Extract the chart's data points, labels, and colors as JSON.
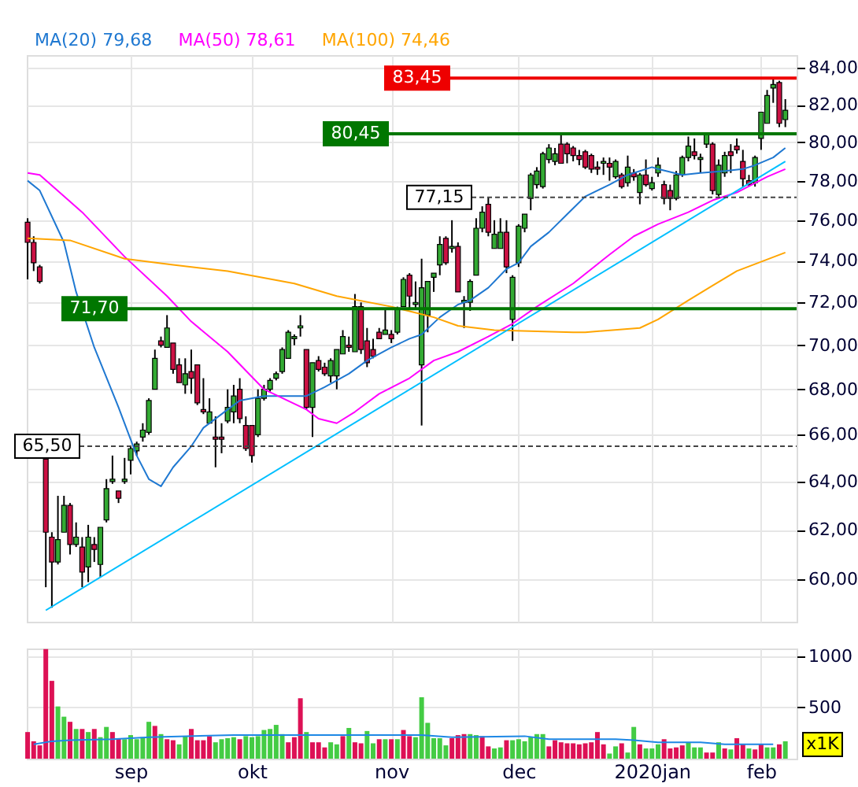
{
  "chart_data": [
    {
      "type": "candlestick",
      "log": true,
      "grid": true,
      "legend": "top left",
      "categories": [
        null,
        null,
        null,
        null,
        null,
        null,
        null,
        null,
        null,
        null,
        null,
        null,
        null,
        null,
        null,
        null,
        null,
        null,
        null,
        null,
        null,
        null,
        null,
        null,
        null,
        null,
        null,
        null,
        null,
        null,
        null,
        null,
        null,
        null,
        null,
        null,
        null,
        null,
        null,
        null,
        null,
        null,
        null,
        null,
        null,
        null,
        null,
        null,
        null,
        null,
        null,
        null,
        null,
        null,
        null,
        null,
        null,
        null,
        null,
        null,
        null,
        null,
        null,
        null,
        null,
        null,
        null,
        null,
        null,
        null,
        null,
        null,
        null,
        null,
        null,
        null,
        null,
        null,
        null,
        null,
        null,
        null,
        null,
        null,
        null,
        null,
        null,
        null,
        null,
        null,
        null,
        null,
        null,
        null,
        null,
        null,
        null,
        null,
        null,
        null,
        null,
        null,
        null,
        null,
        null,
        null,
        null,
        null,
        null,
        null,
        null,
        null,
        null,
        null,
        null,
        null,
        null,
        null,
        null,
        null,
        null,
        null,
        null,
        null,
        null,
        null
      ],
      "ylim": [
        58.36,
        84.72
      ],
      "yticks": [
        {
          "value": 60,
          "label": "60,00"
        },
        {
          "value": 62,
          "label": "62,00"
        },
        {
          "value": 64,
          "label": "64,00"
        },
        {
          "value": 66,
          "label": "66,00"
        },
        {
          "value": 68,
          "label": "68,00"
        },
        {
          "value": 70,
          "label": "70,00"
        },
        {
          "value": 72,
          "label": "72,00"
        },
        {
          "value": 74,
          "label": "74,00"
        },
        {
          "value": 76,
          "label": "76,00"
        },
        {
          "value": 78,
          "label": "78,00"
        },
        {
          "value": 80,
          "label": "80,00"
        },
        {
          "value": 82,
          "label": "82,00"
        },
        {
          "value": 84,
          "label": "84,00"
        }
      ],
      "ohlc": [
        [
          75.9,
          76.1,
          73.1,
          74.9
        ],
        [
          74.9,
          75.2,
          73.5,
          73.9
        ],
        [
          73.7,
          73.8,
          72.9,
          73.0
        ],
        [
          64.95,
          65.05,
          59.7,
          61.9
        ],
        [
          61.7,
          61.9,
          58.9,
          60.7
        ],
        [
          60.7,
          63.4,
          60.6,
          61.6
        ],
        [
          61.9,
          63.4,
          61.9,
          63.0
        ],
        [
          63.0,
          63.1,
          61.0,
          61.4
        ],
        [
          61.4,
          62.3,
          61.3,
          61.7
        ],
        [
          61.3,
          61.7,
          59.7,
          60.3
        ],
        [
          60.5,
          62.2,
          59.9,
          61.7
        ],
        [
          61.4,
          61.7,
          60.7,
          61.2
        ],
        [
          60.6,
          62.1,
          60.1,
          62.1
        ],
        [
          62.4,
          64.1,
          62.3,
          63.7
        ],
        [
          64.0,
          65.1,
          63.9,
          64.1
        ],
        [
          63.6,
          63.6,
          63.1,
          63.3
        ],
        [
          64.0,
          65.0,
          63.9,
          64.1
        ],
        [
          64.9,
          65.5,
          64.3,
          65.4
        ],
        [
          65.3,
          65.7,
          65.1,
          65.6
        ],
        [
          65.9,
          66.5,
          65.7,
          66.2
        ],
        [
          66.1,
          67.6,
          66.0,
          67.5
        ],
        [
          68.0,
          69.8,
          68.0,
          69.4
        ],
        [
          70.2,
          70.4,
          69.9,
          70.0
        ],
        [
          69.9,
          71.4,
          69.9,
          70.8
        ],
        [
          70.1,
          70.1,
          68.7,
          68.9
        ],
        [
          69.1,
          69.4,
          68.3,
          68.3
        ],
        [
          68.2,
          69.4,
          67.8,
          68.7
        ],
        [
          68.8,
          69.8,
          67.8,
          68.5
        ],
        [
          69.1,
          69.1,
          67.3,
          67.4
        ],
        [
          67.1,
          68.5,
          66.9,
          67.0
        ],
        [
          66.5,
          67.6,
          66.5,
          67.0
        ],
        [
          65.9,
          66.8,
          64.6,
          65.8
        ],
        [
          65.9,
          66.5,
          65.2,
          65.8
        ],
        [
          66.6,
          68.0,
          66.5,
          67.2
        ],
        [
          67.0,
          68.2,
          66.5,
          67.7
        ],
        [
          68.0,
          68.5,
          66.5,
          66.7
        ],
        [
          66.4,
          66.8,
          65.3,
          65.4
        ],
        [
          66.4,
          66.4,
          64.8,
          65.1
        ],
        [
          66.0,
          68.0,
          65.9,
          67.6
        ],
        [
          67.6,
          68.2,
          67.5,
          68.0
        ],
        [
          68.0,
          68.5,
          67.9,
          68.4
        ],
        [
          68.5,
          68.8,
          68.4,
          68.7
        ],
        [
          68.8,
          69.9,
          68.7,
          69.8
        ],
        [
          69.4,
          70.7,
          69.4,
          70.6
        ],
        [
          70.3,
          70.5,
          70.0,
          70.4
        ],
        [
          70.8,
          71.4,
          70.4,
          70.9
        ],
        [
          69.8,
          69.8,
          67.1,
          67.2
        ],
        [
          67.2,
          69.2,
          65.9,
          69.2
        ],
        [
          69.3,
          69.5,
          68.8,
          68.9
        ],
        [
          69.0,
          69.2,
          68.6,
          68.7
        ],
        [
          68.6,
          69.4,
          68.3,
          69.3
        ],
        [
          68.6,
          69.8,
          68.0,
          69.8
        ],
        [
          69.6,
          70.7,
          69.6,
          70.4
        ],
        [
          70.0,
          70.4,
          69.7,
          69.9
        ],
        [
          69.7,
          72.4,
          69.7,
          71.8
        ],
        [
          71.8,
          72.0,
          69.6,
          69.8
        ],
        [
          70.2,
          70.8,
          69.0,
          69.2
        ],
        [
          69.8,
          70.3,
          69.4,
          69.5
        ],
        [
          70.6,
          70.8,
          70.3,
          70.3
        ],
        [
          70.5,
          71.7,
          70.5,
          70.7
        ],
        [
          70.5,
          70.7,
          70.1,
          70.3
        ],
        [
          70.6,
          71.8,
          70.5,
          71.7
        ],
        [
          71.8,
          73.2,
          71.8,
          73.1
        ],
        [
          73.3,
          73.4,
          71.7,
          72.3
        ],
        [
          71.9,
          73.0,
          71.7,
          72.0
        ],
        [
          69.1,
          74.1,
          66.4,
          72.7
        ],
        [
          71.4,
          73.0,
          70.6,
          73.0
        ],
        [
          73.2,
          73.4,
          72.5,
          73.4
        ],
        [
          73.8,
          75.2,
          73.3,
          74.8
        ],
        [
          75.1,
          75.2,
          73.8,
          73.9
        ],
        [
          74.6,
          76.0,
          74.4,
          74.7
        ],
        [
          74.7,
          74.9,
          72.5,
          72.5
        ],
        [
          72.0,
          72.3,
          70.8,
          72.1
        ],
        [
          72.0,
          73.1,
          71.6,
          73.0
        ],
        [
          73.3,
          76.1,
          73.3,
          75.6
        ],
        [
          75.6,
          76.7,
          75.4,
          76.4
        ],
        [
          76.8,
          77.15,
          75.2,
          75.4
        ],
        [
          74.6,
          76.0,
          74.6,
          75.3
        ],
        [
          74.6,
          76.1,
          74.6,
          75.4
        ],
        [
          75.4,
          76.0,
          73.4,
          73.7
        ],
        [
          71.2,
          73.3,
          70.2,
          73.2
        ],
        [
          73.9,
          75.8,
          73.7,
          75.7
        ],
        [
          75.6,
          76.3,
          75.4,
          76.3
        ],
        [
          77.1,
          78.4,
          76.5,
          78.3
        ],
        [
          77.8,
          78.7,
          77.6,
          78.5
        ],
        [
          77.7,
          79.5,
          77.6,
          79.4
        ],
        [
          79.1,
          79.9,
          78.9,
          79.7
        ],
        [
          79.0,
          79.7,
          78.8,
          79.4
        ],
        [
          79.9,
          80.4,
          78.9,
          78.9
        ],
        [
          79.9,
          80.0,
          78.9,
          79.4
        ],
        [
          79.7,
          79.8,
          79.0,
          79.3
        ],
        [
          79.3,
          79.6,
          78.8,
          79.1
        ],
        [
          79.5,
          79.6,
          78.6,
          78.7
        ],
        [
          79.3,
          79.4,
          78.4,
          78.6
        ],
        [
          78.7,
          79.0,
          78.3,
          78.6
        ],
        [
          78.9,
          79.2,
          78.3,
          79.0
        ],
        [
          78.9,
          79.2,
          78.0,
          78.7
        ],
        [
          78.2,
          79.1,
          78.1,
          79.0
        ],
        [
          78.3,
          78.4,
          77.6,
          77.7
        ],
        [
          77.9,
          79.3,
          77.7,
          78.7
        ],
        [
          78.4,
          78.6,
          78.0,
          78.2
        ],
        [
          77.4,
          78.4,
          76.8,
          78.3
        ],
        [
          78.3,
          79.1,
          77.7,
          77.8
        ],
        [
          77.6,
          78.2,
          77.5,
          77.9
        ],
        [
          78.4,
          79.2,
          78.2,
          78.8
        ],
        [
          77.8,
          78.0,
          76.8,
          77.1
        ],
        [
          77.5,
          77.8,
          76.5,
          77.1
        ],
        [
          77.1,
          78.5,
          77.0,
          78.3
        ],
        [
          78.3,
          79.3,
          78.2,
          79.2
        ],
        [
          79.2,
          80.3,
          79.0,
          79.8
        ],
        [
          79.5,
          80.2,
          79.1,
          79.3
        ],
        [
          79.1,
          79.4,
          78.4,
          79.2
        ],
        [
          79.9,
          80.45,
          79.7,
          80.4
        ],
        [
          79.9,
          80.0,
          77.3,
          77.5
        ],
        [
          77.3,
          79.1,
          77.2,
          78.8
        ],
        [
          78.4,
          79.5,
          78.2,
          79.3
        ],
        [
          79.5,
          79.9,
          78.4,
          79.3
        ],
        [
          79.8,
          80.2,
          79.4,
          79.6
        ],
        [
          79.0,
          79.6,
          77.7,
          78.1
        ],
        [
          78.0,
          78.3,
          77.7,
          77.8
        ],
        [
          77.9,
          79.3,
          77.7,
          79.2
        ],
        [
          80.2,
          81.6,
          79.6,
          81.6
        ],
        [
          81.0,
          82.8,
          81.0,
          82.5
        ],
        [
          82.9,
          83.45,
          82.1,
          83.1
        ],
        [
          83.2,
          83.3,
          80.8,
          81.0
        ],
        [
          81.2,
          82.3,
          80.8,
          81.7
        ]
      ],
      "colors": [
        "#cc1144",
        "#cc1144",
        "#cc1144",
        "#cc1144",
        "#cc1144",
        "#33aa33",
        "#33aa33",
        "#cc1144",
        "#33aa33",
        "#cc1144",
        "#33aa33",
        "#cc1144",
        "#33aa33",
        "#33aa33",
        "#33aa33",
        "#cc1144",
        "#33aa33",
        "#33aa33",
        "#33aa33",
        "#33aa33",
        "#33aa33",
        "#33aa33",
        "#cc1144",
        "#33aa33",
        "#cc1144",
        "#cc1144",
        "#33aa33",
        "#cc1144",
        "#cc1144",
        "#cc1144",
        "#33aa33",
        "#cc1144",
        "#cc1144",
        "#33aa33",
        "#33aa33",
        "#cc1144",
        "#cc1144",
        "#cc1144",
        "#33aa33",
        "#33aa33",
        "#33aa33",
        "#33aa33",
        "#33aa33",
        "#33aa33",
        "#33aa33",
        "#33aa33",
        "#cc1144",
        "#33aa33",
        "#cc1144",
        "#cc1144",
        "#33aa33",
        "#33aa33",
        "#33aa33",
        "#cc1144",
        "#33aa33",
        "#cc1144",
        "#cc1144",
        "#cc1144",
        "#cc1144",
        "#33aa33",
        "#cc1144",
        "#33aa33",
        "#33aa33",
        "#cc1144",
        "#33aa33",
        "#33aa33",
        "#33aa33",
        "#33aa33",
        "#33aa33",
        "#cc1144",
        "#33aa33",
        "#cc1144",
        "#33aa33",
        "#33aa33",
        "#33aa33",
        "#33aa33",
        "#cc1144",
        "#33aa33",
        "#33aa33",
        "#cc1144",
        "#33aa33",
        "#33aa33",
        "#33aa33",
        "#33aa33",
        "#33aa33",
        "#33aa33",
        "#33aa33",
        "#33aa33",
        "#cc1144",
        "#cc1144",
        "#cc1144",
        "#cc1144",
        "#cc1144",
        "#cc1144",
        "#cc1144",
        "#33aa33",
        "#cc1144",
        "#33aa33",
        "#cc1144",
        "#33aa33",
        "#cc1144",
        "#33aa33",
        "#cc1144",
        "#33aa33",
        "#33aa33",
        "#cc1144",
        "#cc1144",
        "#33aa33",
        "#33aa33",
        "#33aa33",
        "#cc1144",
        "#33aa33",
        "#33aa33",
        "#cc1144",
        "#33aa33",
        "#33aa33",
        "#cc1144",
        "#cc1144",
        "#cc1144",
        "#cc1144",
        "#33aa33",
        "#33aa33",
        "#33aa33",
        "#33aa33",
        "#cc1144",
        "#33aa33"
      ],
      "series": [
        {
          "name": "MA(20) 79,68",
          "type": "line",
          "color": "#1f78d1",
          "values": [
            78.0,
            null,
            77.5,
            null,
            null,
            null,
            74.9,
            null,
            72.5,
            null,
            null,
            69.9,
            null,
            null,
            null,
            67.2,
            null,
            null,
            65.1,
            null,
            64.1,
            null,
            63.8,
            null,
            64.6,
            null,
            null,
            65.5,
            null,
            66.3,
            null,
            null,
            null,
            67.1,
            null,
            67.5,
            null,
            null,
            null,
            67.7,
            null,
            null,
            67.7,
            null,
            null,
            null,
            67.7,
            null,
            null,
            68.1,
            null,
            null,
            null,
            68.7,
            null,
            null,
            69.3,
            null,
            null,
            null,
            69.9,
            null,
            null,
            70.3,
            null,
            70.5,
            null,
            null,
            71.3,
            null,
            null,
            71.9,
            null,
            72.1,
            null,
            null,
            72.7,
            null,
            null,
            73.6,
            null,
            73.9,
            null,
            74.7,
            null,
            null,
            75.4,
            null,
            null,
            76.3,
            null,
            null,
            77.2,
            null,
            null,
            null,
            77.8,
            null,
            null,
            78.3,
            null,
            null,
            null,
            78.7,
            78.6,
            null,
            null,
            null,
            78.3,
            null,
            null,
            78.4,
            null,
            null,
            null,
            78.5,
            null,
            null,
            78.6,
            null,
            78.8,
            null,
            null,
            79.2,
            null,
            79.7
          ]
        },
        {
          "name": "MA(50) 78,61",
          "type": "line",
          "color": "#ff00ff",
          "values": [
            78.4,
            null,
            78.3,
            null,
            null,
            null,
            null,
            null,
            null,
            76.4,
            null,
            null,
            null,
            null,
            null,
            null,
            74.2,
            null,
            null,
            null,
            null,
            null,
            null,
            72.3,
            null,
            null,
            null,
            71.1,
            null,
            null,
            null,
            null,
            null,
            69.7,
            null,
            null,
            null,
            null,
            null,
            68.0,
            null,
            null,
            null,
            null,
            null,
            null,
            67.1,
            null,
            66.7,
            null,
            null,
            66.5,
            null,
            null,
            67.0,
            null,
            null,
            null,
            67.8,
            null,
            null,
            null,
            null,
            68.5,
            null,
            null,
            null,
            69.3,
            null,
            null,
            null,
            69.7,
            null,
            null,
            null,
            null,
            70.4,
            null,
            null,
            null,
            71.0,
            null,
            null,
            null,
            71.8,
            null,
            null,
            null,
            null,
            null,
            72.9,
            null,
            null,
            null,
            null,
            null,
            74.3,
            null,
            null,
            null,
            75.2,
            null,
            null,
            null,
            75.8,
            null,
            null,
            null,
            null,
            76.4,
            null,
            null,
            null,
            77.0,
            null,
            null,
            null,
            77.4,
            null,
            null,
            null,
            null,
            78.2,
            null,
            null,
            78.6
          ]
        },
        {
          "name": "MA(100) 74,46",
          "type": "line",
          "color": "#ffa500",
          "values": [
            75.1,
            null,
            null,
            null,
            null,
            null,
            null,
            75.0,
            null,
            null,
            null,
            null,
            null,
            null,
            null,
            null,
            74.1,
            null,
            null,
            null,
            null,
            null,
            null,
            null,
            73.8,
            null,
            null,
            null,
            null,
            null,
            null,
            null,
            null,
            73.5,
            null,
            null,
            null,
            null,
            null,
            null,
            null,
            null,
            null,
            null,
            72.9,
            null,
            null,
            null,
            null,
            null,
            null,
            72.3,
            null,
            null,
            null,
            null,
            null,
            null,
            null,
            null,
            71.8,
            null,
            null,
            null,
            null,
            null,
            null,
            71.3,
            null,
            null,
            null,
            70.9,
            null,
            null,
            null,
            null,
            null,
            70.7,
            null,
            null,
            null,
            null,
            null,
            null,
            null,
            null,
            null,
            null,
            null,
            null,
            70.6,
            null,
            70.6,
            null,
            null,
            null,
            null,
            null,
            null,
            null,
            null,
            70.8,
            null,
            null,
            71.2,
            null,
            null,
            null,
            null,
            72.1,
            null,
            null,
            null,
            72.8,
            null,
            null,
            null,
            73.5,
            null,
            null,
            null,
            null,
            null,
            null,
            null,
            74.4
          ]
        },
        {
          "type": "line",
          "color": "#00bfff",
          "values": [
            null,
            null,
            null,
            58.8,
            null,
            null,
            null,
            null,
            null,
            null,
            null,
            null,
            null,
            null,
            null,
            null,
            null,
            null,
            null,
            null,
            null,
            null,
            null,
            null,
            null,
            null,
            null,
            null,
            null,
            null,
            null,
            null,
            null,
            null,
            null,
            null,
            null,
            null,
            null,
            null,
            null,
            null,
            null,
            null,
            null,
            null,
            null,
            null,
            null,
            null,
            null,
            null,
            null,
            null,
            null,
            null,
            null,
            null,
            null,
            null,
            null,
            null,
            null,
            null,
            null,
            null,
            null,
            null,
            null,
            null,
            null,
            null,
            null,
            null,
            null,
            null,
            null,
            null,
            null,
            null,
            null,
            null,
            null,
            null,
            null,
            null,
            null,
            null,
            null,
            null,
            null,
            null,
            null,
            null,
            null,
            null,
            null,
            null,
            null,
            null,
            null,
            null,
            null,
            null,
            null,
            null,
            null,
            null,
            null,
            null,
            null,
            null,
            null,
            null,
            null,
            null,
            null,
            null,
            null,
            null,
            null,
            null,
            null,
            null,
            null,
            79.0
          ]
        }
      ],
      "ref_lines": [
        {
          "axis": "y",
          "value": 83.45,
          "label": "83,45",
          "color": "#ee0000",
          "line_style": "solid"
        },
        {
          "axis": "y",
          "value": 80.45,
          "label": "80,45",
          "color": "#007700",
          "line_style": "solid"
        },
        {
          "axis": "y",
          "value": 77.15,
          "label": "77,15",
          "color": "#444444",
          "line_style": "dashed"
        },
        {
          "axis": "y",
          "value": 71.7,
          "label": "71,70",
          "color": "#007700",
          "line_style": "solid"
        },
        {
          "axis": "y",
          "value": 65.5,
          "label": "65,50",
          "color": "#444444",
          "line_style": "dashed"
        }
      ]
    },
    {
      "type": "bar",
      "grid": true,
      "categories": [
        null,
        null,
        null,
        null,
        null,
        null,
        null,
        null,
        null,
        null,
        null,
        null,
        null,
        null,
        null,
        null,
        null,
        "sep",
        null,
        null,
        null,
        null,
        null,
        null,
        null,
        null,
        null,
        null,
        null,
        null,
        null,
        null,
        null,
        null,
        null,
        null,
        null,
        "okt",
        null,
        null,
        null,
        null,
        null,
        null,
        null,
        null,
        null,
        null,
        null,
        null,
        null,
        null,
        null,
        null,
        null,
        null,
        null,
        null,
        null,
        null,
        "nov",
        null,
        null,
        null,
        null,
        null,
        null,
        null,
        null,
        null,
        null,
        null,
        null,
        null,
        null,
        null,
        null,
        null,
        null,
        null,
        null,
        "dec",
        null,
        null,
        null,
        null,
        null,
        null,
        null,
        null,
        null,
        null,
        null,
        null,
        null,
        null,
        null,
        null,
        null,
        null,
        null,
        null,
        null,
        "2020jan",
        null,
        null,
        null,
        null,
        null,
        null,
        null,
        null,
        null,
        null,
        null,
        null,
        null,
        null,
        null,
        null,
        null,
        "feb",
        null,
        null,
        null,
        null
      ],
      "ylim": [
        0,
        1076
      ],
      "yticks": [
        500,
        1000
      ],
      "annotations": [
        "x1K"
      ],
      "values": [
        260,
        170,
        130,
        1070,
        760,
        510,
        410,
        360,
        290,
        290,
        260,
        290,
        210,
        310,
        260,
        200,
        190,
        230,
        190,
        210,
        360,
        320,
        240,
        190,
        180,
        140,
        220,
        290,
        180,
        180,
        220,
        160,
        190,
        200,
        210,
        190,
        220,
        210,
        220,
        280,
        290,
        330,
        240,
        160,
        210,
        590,
        260,
        160,
        160,
        110,
        160,
        140,
        220,
        300,
        160,
        150,
        270,
        150,
        190,
        190,
        190,
        190,
        280,
        220,
        210,
        600,
        350,
        200,
        200,
        130,
        200,
        230,
        240,
        240,
        230,
        220,
        120,
        100,
        110,
        180,
        180,
        190,
        170,
        210,
        240,
        240,
        120,
        180,
        160,
        150,
        150,
        140,
        150,
        160,
        260,
        140,
        50,
        120,
        150,
        60,
        310,
        140,
        100,
        100,
        140,
        190,
        100,
        110,
        130,
        160,
        110,
        110,
        60,
        60,
        160,
        100,
        90,
        200,
        140,
        100,
        90,
        140,
        110,
        110,
        140,
        170
      ],
      "colors": [
        "#dd1155",
        "#dd1155",
        "#dd1155",
        "#dd1155",
        "#dd1155",
        "#44cc44",
        "#44cc44",
        "#dd1155",
        "#44cc44",
        "#dd1155",
        "#44cc44",
        "#dd1155",
        "#44cc44",
        "#44cc44",
        "#dd1155",
        "#dd1155",
        "#44cc44",
        "#44cc44",
        "#44cc44",
        "#44cc44",
        "#44cc44",
        "#dd1155",
        "#44cc44",
        "#dd1155",
        "#dd1155",
        "#44cc44",
        "#44cc44",
        "#dd1155",
        "#dd1155",
        "#dd1155",
        "#dd1155",
        "#44cc44",
        "#44cc44",
        "#44cc44",
        "#44cc44",
        "#dd1155",
        "#44cc44",
        "#44cc44",
        "#44cc44",
        "#44cc44",
        "#44cc44",
        "#44cc44",
        "#44cc44",
        "#dd1155",
        "#dd1155",
        "#dd1155",
        "#44cc44",
        "#dd1155",
        "#dd1155",
        "#dd1155",
        "#44cc44",
        "#44cc44",
        "#dd1155",
        "#44cc44",
        "#dd1155",
        "#dd1155",
        "#44cc44",
        "#44cc44",
        "#dd1155",
        "#44cc44",
        "#dd1155",
        "#44cc44",
        "#dd1155",
        "#dd1155",
        "#44cc44",
        "#44cc44",
        "#44cc44",
        "#44cc44",
        "#44cc44",
        "#44cc44",
        "#dd1155",
        "#dd1155",
        "#dd1155",
        "#44cc44",
        "#44cc44",
        "#dd1155",
        "#dd1155",
        "#44cc44",
        "#44cc44",
        "#dd1155",
        "#44cc44",
        "#44cc44",
        "#44cc44",
        "#44cc44",
        "#44cc44",
        "#44cc44",
        "#dd1155",
        "#dd1155",
        "#dd1155",
        "#dd1155",
        "#dd1155",
        "#dd1155",
        "#dd1155",
        "#dd1155",
        "#dd1155",
        "#dd1155",
        "#44cc44",
        "#44cc44",
        "#dd1155",
        "#44cc44",
        "#44cc44",
        "#dd1155",
        "#44cc44",
        "#44cc44",
        "#44cc44",
        "#dd1155",
        "#dd1155",
        "#dd1155",
        "#dd1155",
        "#44cc44",
        "#44cc44",
        "#44cc44",
        "#dd1155",
        "#dd1155",
        "#44cc44",
        "#dd1155",
        "#44cc44",
        "#dd1155",
        "#dd1155",
        "#44cc44",
        "#dd1155",
        "#dd1155",
        "#44cc44",
        "#44cc44",
        "#dd1155",
        "#44cc44"
      ],
      "series": [
        {
          "type": "line",
          "color": "#1e88e5",
          "values": [
            null,
            140,
            null,
            null,
            170,
            null,
            null,
            180,
            null,
            null,
            null,
            null,
            null,
            null,
            190,
            null,
            null,
            null,
            null,
            null,
            210,
            null,
            null,
            null,
            null,
            null,
            null,
            null,
            null,
            null,
            null,
            null,
            null,
            null,
            230,
            null,
            null,
            null,
            null,
            null,
            null,
            null,
            null,
            null,
            null,
            230,
            null,
            null,
            null,
            null,
            null,
            null,
            null,
            null,
            null,
            null,
            null,
            null,
            null,
            null,
            null,
            null,
            null,
            null,
            null,
            230,
            null,
            null,
            null,
            null,
            210,
            null,
            null,
            null,
            null,
            null,
            null,
            null,
            null,
            null,
            null,
            null,
            220,
            null,
            null,
            null,
            190,
            null,
            null,
            null,
            null,
            null,
            null,
            null,
            null,
            null,
            null,
            190,
            null,
            null,
            180,
            null,
            null,
            null,
            160,
            null,
            null,
            null,
            null,
            null,
            null,
            160,
            null,
            null,
            null,
            140,
            null,
            null,
            null,
            null,
            null,
            null,
            null,
            140,
            null,
            null
          ]
        }
      ]
    }
  ]
}
